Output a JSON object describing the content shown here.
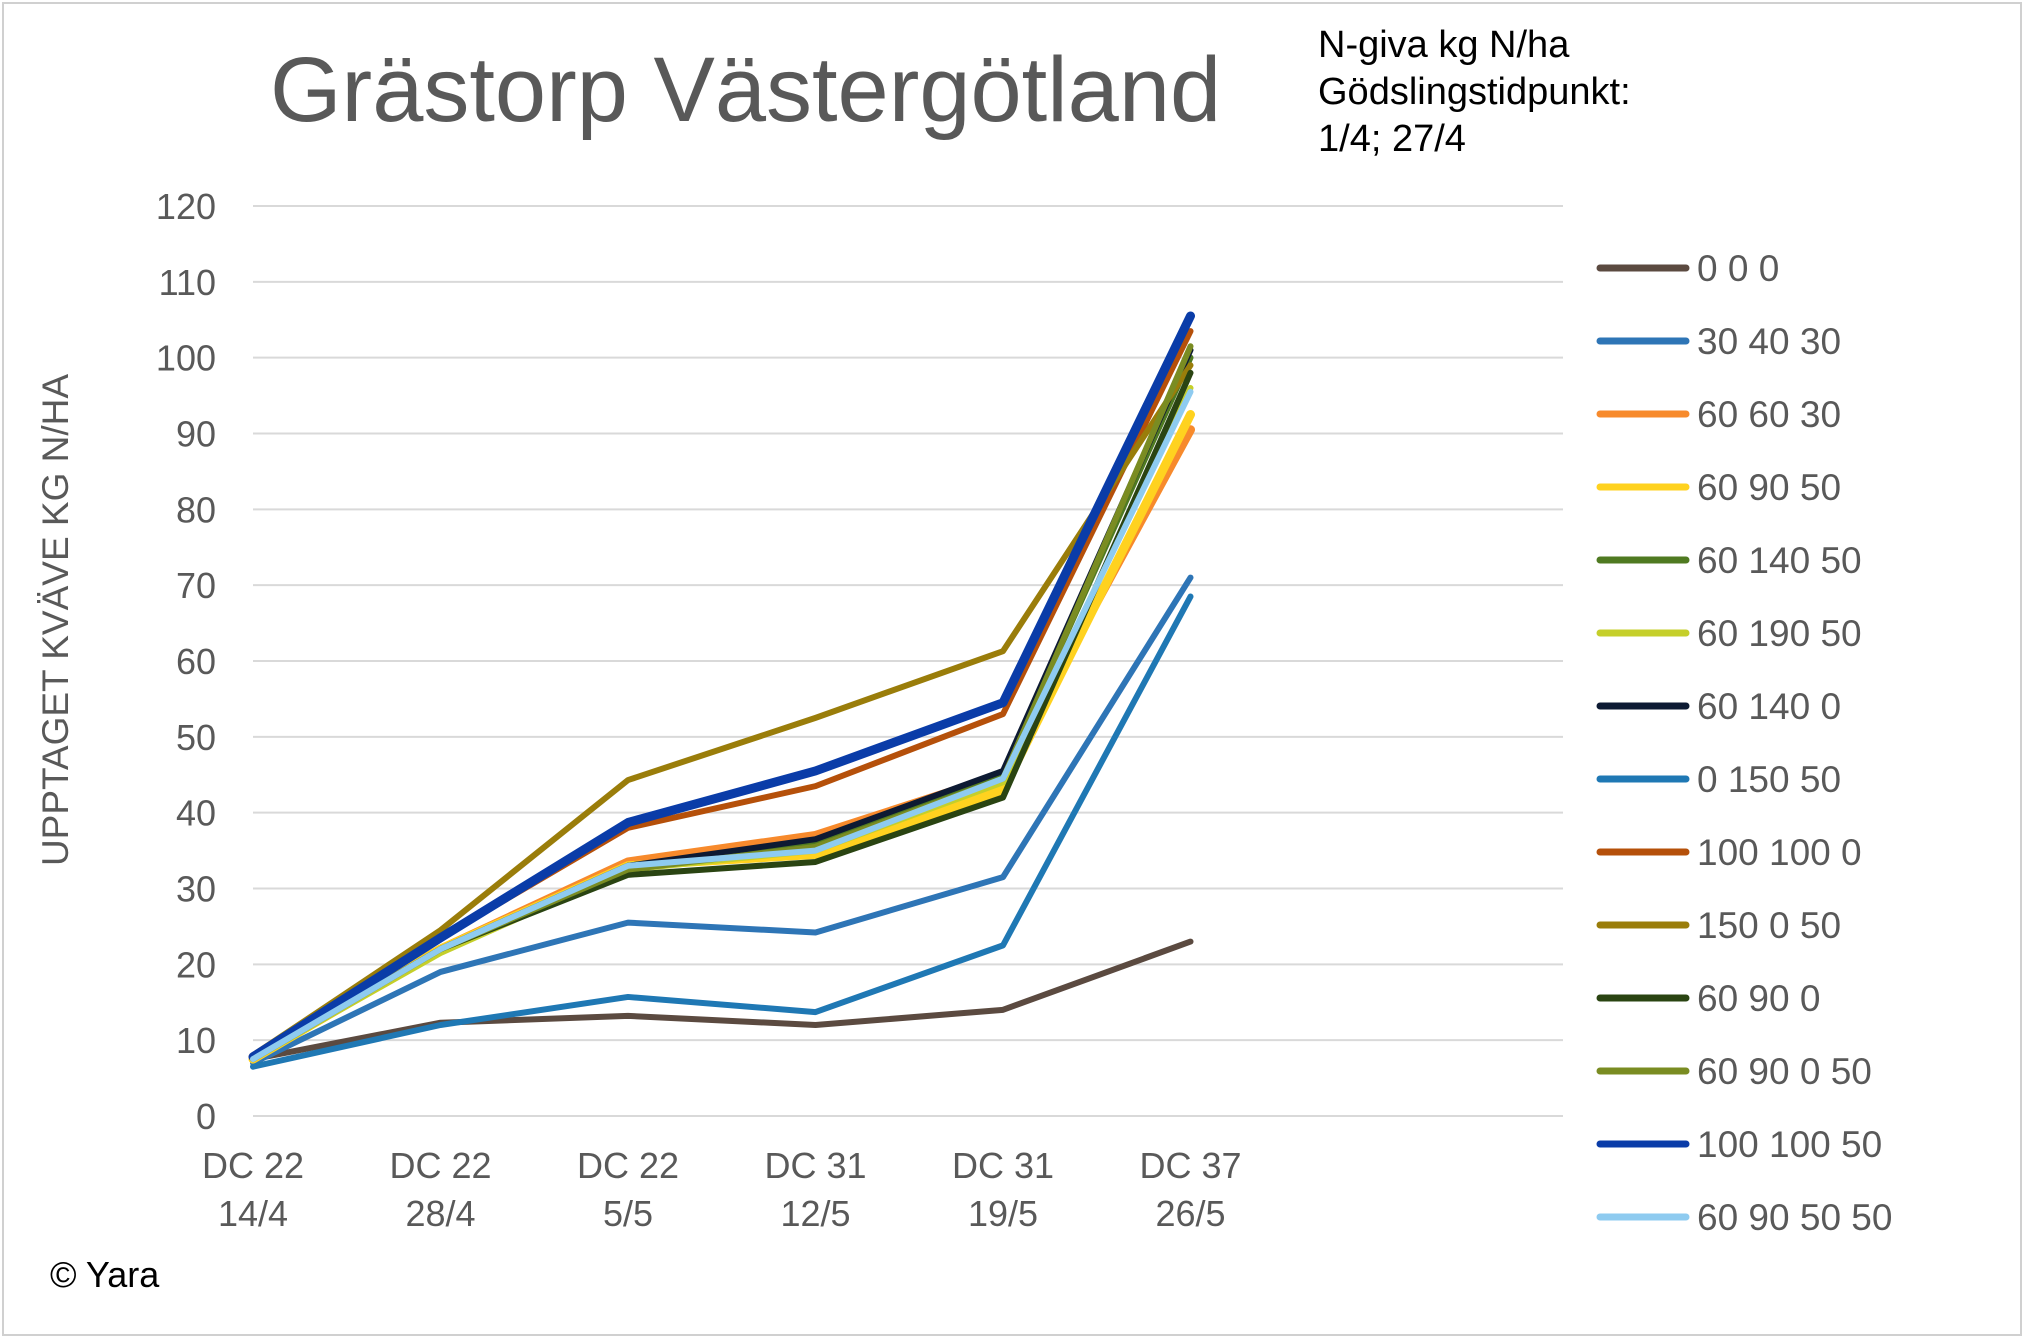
{
  "chart_data": {
    "type": "line",
    "title": "Grästorp Västergötland",
    "annotation": [
      "N-giva kg N/ha",
      "Gödslingstidpunkt:",
      "1/4; 27/4"
    ],
    "ylabel": "UPPTAGET KVÄVE KG N/HA",
    "xlabel": "",
    "ylim": [
      0,
      120
    ],
    "yticks": [
      0,
      10,
      20,
      30,
      40,
      50,
      60,
      70,
      80,
      90,
      100,
      110,
      120
    ],
    "grid": true,
    "legend": "right",
    "categories": [
      [
        "DC 22",
        "14/4"
      ],
      [
        "DC 22",
        "28/4"
      ],
      [
        "DC 22",
        "5/5"
      ],
      [
        "DC 31",
        "12/5"
      ],
      [
        "DC 31",
        "19/5"
      ],
      [
        "DC 37",
        "26/5"
      ]
    ],
    "series": [
      {
        "name": "0 0 0",
        "color": "#5b4a40",
        "values": [
          7.5,
          12.3,
          13.2,
          12.0,
          14.0,
          23.0
        ]
      },
      {
        "name": "30 40 30",
        "color": "#2e75b6",
        "values": [
          7.0,
          19.0,
          25.5,
          24.2,
          31.5,
          71.0
        ]
      },
      {
        "name": "60 60 30",
        "color": "#f78a2c",
        "values": [
          7.8,
          22.0,
          33.5,
          37.0,
          45.0,
          90.5
        ]
      },
      {
        "name": "60 90 50",
        "color": "#ffd21f",
        "values": [
          7.5,
          22.0,
          33.0,
          34.5,
          43.0,
          92.5
        ]
      },
      {
        "name": "60 140 50",
        "color": "#4f7a21",
        "values": [
          7.6,
          22.0,
          33.0,
          36.0,
          45.0,
          100.0
        ]
      },
      {
        "name": "60 190 50",
        "color": "#c5cf2a",
        "values": [
          7.5,
          21.5,
          32.5,
          35.0,
          44.0,
          96.0
        ]
      },
      {
        "name": "60 140 0",
        "color": "#0d1a33",
        "values": [
          7.6,
          22.0,
          33.0,
          36.5,
          45.5,
          101.0
        ]
      },
      {
        "name": "0 150 50",
        "color": "#1f78b4",
        "values": [
          6.5,
          12.0,
          15.7,
          13.7,
          22.5,
          68.5
        ]
      },
      {
        "name": "100 100 0",
        "color": "#b5500a",
        "values": [
          8.0,
          23.5,
          38.0,
          43.5,
          53.0,
          103.5
        ]
      },
      {
        "name": "150 0 50",
        "color": "#9a7d0a",
        "values": [
          8.0,
          24.5,
          44.3,
          52.5,
          61.3,
          99.0
        ]
      },
      {
        "name": "60 90 0",
        "color": "#2a4412",
        "values": [
          7.5,
          22.0,
          31.8,
          33.5,
          42.0,
          98.0
        ]
      },
      {
        "name": "60 90 0 50",
        "color": "#7a8c22",
        "values": [
          7.6,
          22.0,
          32.5,
          35.5,
          44.5,
          101.5
        ]
      },
      {
        "name": "100 100 50",
        "color": "#0a3ca8",
        "values": [
          7.8,
          23.5,
          38.7,
          45.5,
          54.5,
          105.5
        ]
      },
      {
        "name": "60 90 50 50",
        "color": "#8ecbf0",
        "values": [
          7.5,
          22.0,
          33.0,
          35.0,
          44.5,
          95.5
        ]
      }
    ]
  },
  "footer": {
    "copyright": "© Yara"
  }
}
